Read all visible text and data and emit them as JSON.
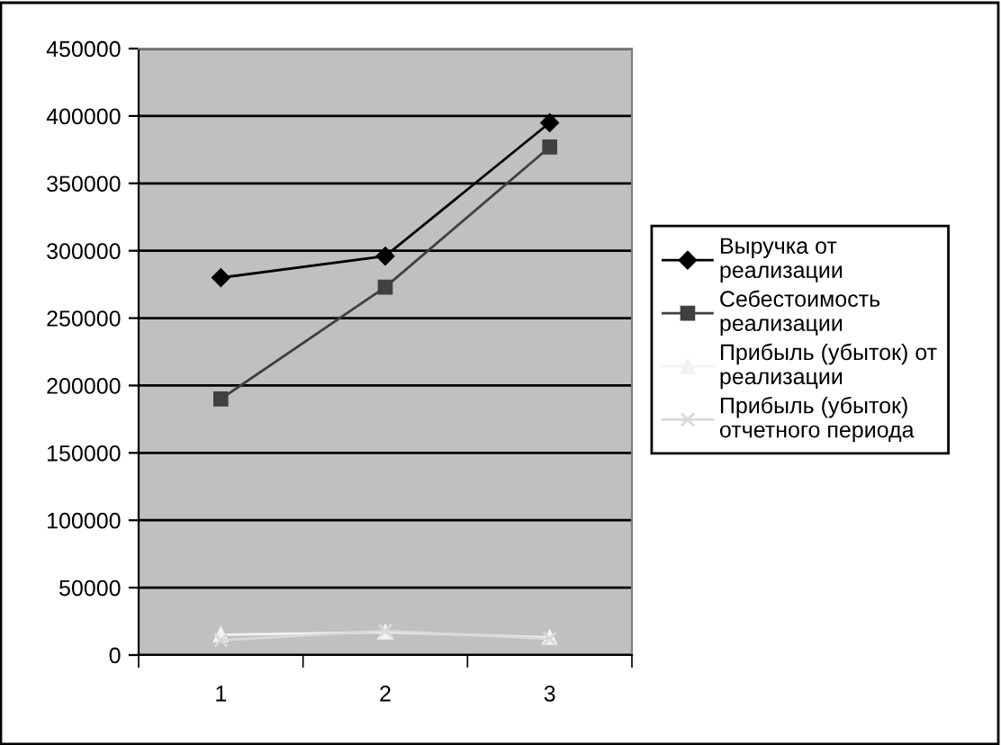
{
  "chart_data": {
    "type": "line",
    "categories": [
      "1",
      "2",
      "3"
    ],
    "series": [
      {
        "name": "Выручка от реализации",
        "color": "#000000",
        "marker": "diamond",
        "values": [
          280000,
          296000,
          395000
        ]
      },
      {
        "name": "Себестоимость реализации",
        "color": "#404040",
        "marker": "square",
        "values": [
          190000,
          273000,
          377000
        ]
      },
      {
        "name": "Прибыль (убыток) от реализации",
        "color": "#f2f2f2",
        "marker": "triangle",
        "values": [
          15000,
          17000,
          13000
        ]
      },
      {
        "name": "Прибыль (убыток) отчетного периода",
        "color": "#d9d9d9",
        "marker": "cross",
        "values": [
          11000,
          18000,
          12000
        ]
      }
    ],
    "ylim": [
      0,
      450000
    ],
    "yticks": [
      0,
      50000,
      100000,
      150000,
      200000,
      250000,
      300000,
      350000,
      400000,
      450000
    ],
    "grid": "y",
    "legend": "right"
  }
}
